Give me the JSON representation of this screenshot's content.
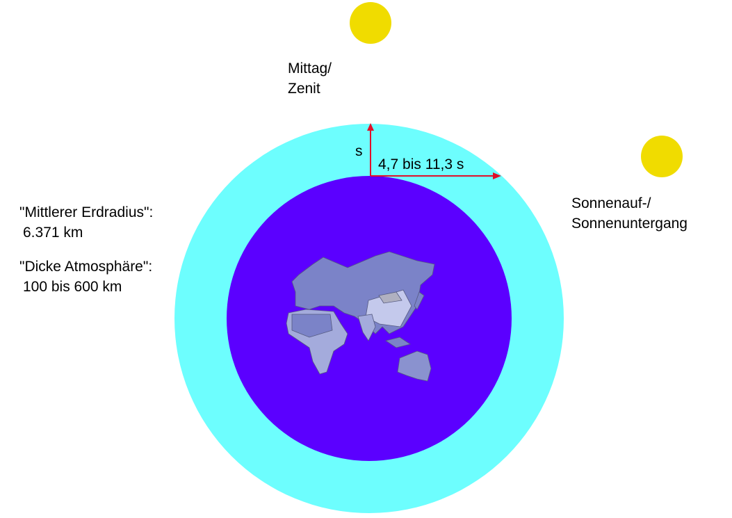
{
  "labels": {
    "noon_line1": "Mittag/",
    "noon_line2": "Zenit",
    "sunrise_line1": "Sonnenauf-/",
    "sunrise_line2": "Sonnenuntergang",
    "radius_title": "\"Mittlerer Erdradius\":",
    "radius_value": "6.371 km",
    "atmosphere_title": "\"Dicke Atmosphäre\":",
    "atmosphere_value": "100 bis 600 km",
    "vertical_path": "s",
    "horizontal_path": "4,7 bis 11,3 s"
  },
  "colors": {
    "atmosphere": "#6dfefe",
    "earth": "#5b00ff",
    "sun": "#f0dc00",
    "arrow": "#e0102a",
    "land": "#7b83c8",
    "land_light": "#c4c9ec"
  }
}
